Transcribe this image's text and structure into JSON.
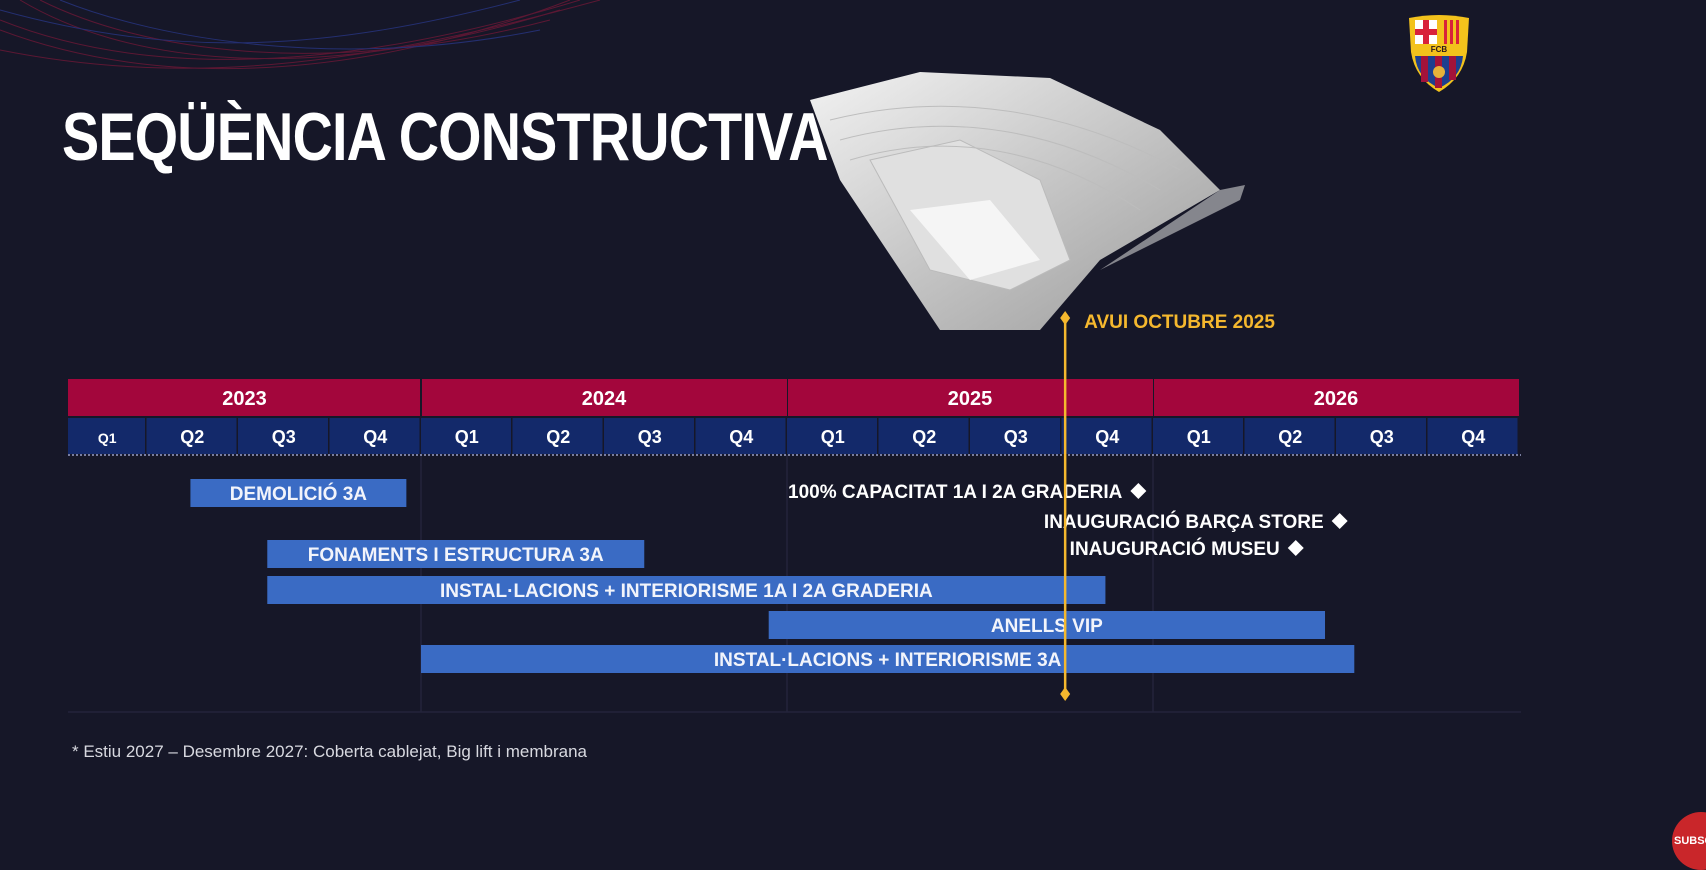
{
  "slide": {
    "title": "SEQÜÈNCIA CONSTRUCTIVA",
    "footnote": "* Estiu 2027 – Desembre 2027: Coberta cablejat, Big lift i membrana",
    "logo_text": "FCB",
    "subscribe_label": "SUBSCRIBE"
  },
  "colors": {
    "background": "#161728",
    "year_band": "#a3063c",
    "quarter_band": "#13296a",
    "bar": "#3a6bc4",
    "today_line": "#f5b82e",
    "milestone": "#ffffff"
  },
  "chart_data": {
    "type": "gantt",
    "x_unit": "year",
    "xlim": [
      2023.0,
      2027.0
    ],
    "years": [
      "2023",
      "2024",
      "2025",
      "2026"
    ],
    "quarters": [
      "Q1",
      "Q2",
      "Q3",
      "Q4"
    ],
    "today": {
      "label": "AVUI OCTUBRE 2025",
      "date": 2025.76
    },
    "tasks": [
      {
        "label": "DEMOLICIÓ 3A",
        "start": 2023.37,
        "end": 2023.96
      },
      {
        "label": "FONAMENTS I ESTRUCTURA 3A",
        "start": 2023.58,
        "end": 2024.61
      },
      {
        "label": "INSTAL·LACIONS + INTERIORISME 1A I 2A GRADERIA",
        "start": 2023.58,
        "end": 2025.87
      },
      {
        "label": "ANELLS VIP",
        "start": 2024.95,
        "end": 2026.47
      },
      {
        "label": "INSTAL·LACIONS + INTERIORISME 3A",
        "start": 2024.0,
        "end": 2026.55
      }
    ],
    "milestones": [
      {
        "label": "100% CAPACITAT 1A I 2A GRADERIA",
        "date": 2025.96
      },
      {
        "label": "INAUGURACIÓ BARÇA STORE",
        "date": 2026.51
      },
      {
        "label": "INAUGURACIÓ MUSEU",
        "date": 2026.39
      }
    ],
    "grid": true
  }
}
